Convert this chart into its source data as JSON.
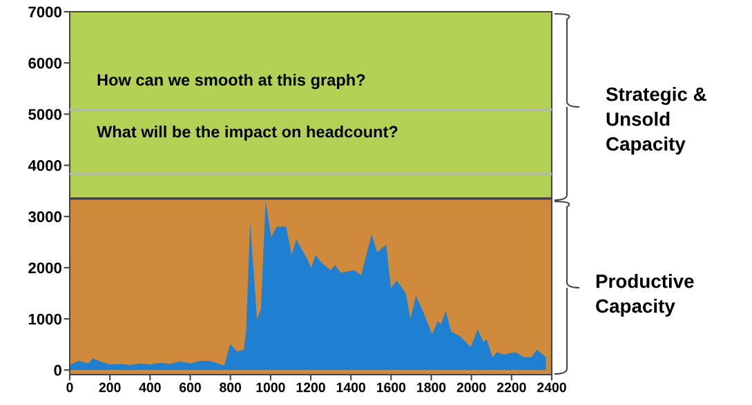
{
  "chart_data": {
    "type": "area",
    "x": [
      0,
      44,
      94,
      115,
      150,
      200,
      250,
      300,
      350,
      400,
      450,
      500,
      550,
      600,
      650,
      696,
      769,
      799,
      833,
      867,
      878,
      898,
      933,
      952,
      975,
      1003,
      1031,
      1077,
      1105,
      1128,
      1185,
      1202,
      1224,
      1253,
      1298,
      1321,
      1349,
      1417,
      1451,
      1503,
      1531,
      1576,
      1599,
      1628,
      1673,
      1696,
      1724,
      1764,
      1804,
      1832,
      1849,
      1872,
      1900,
      1946,
      1997,
      2031,
      2059,
      2076,
      2105,
      2127,
      2161,
      2218,
      2264,
      2298,
      2326,
      2371
    ],
    "series": [
      {
        "color": "#1f7fd0",
        "values": [
          100,
          180,
          130,
          230,
          170,
          110,
          120,
          100,
          130,
          110,
          140,
          120,
          170,
          130,
          180,
          180,
          90,
          510,
          360,
          400,
          760,
          2900,
          980,
          1200,
          3300,
          2600,
          2800,
          2800,
          2250,
          2550,
          2150,
          2000,
          2250,
          2100,
          1950,
          2050,
          1900,
          1950,
          1850,
          2650,
          2300,
          2450,
          1600,
          1750,
          1500,
          1000,
          1450,
          1100,
          700,
          950,
          900,
          1150,
          750,
          650,
          450,
          800,
          550,
          600,
          250,
          350,
          300,
          350,
          250,
          250,
          400,
          250
        ]
      }
    ],
    "xlim": [
      0,
      2400
    ],
    "xticks": [
      0,
      200,
      400,
      600,
      800,
      1000,
      1200,
      1400,
      1600,
      1800,
      2000,
      2200,
      2400
    ],
    "ylim": [
      -90,
      7000
    ],
    "yticks": [
      0,
      1000,
      2000,
      3000,
      4000,
      5000,
      6000,
      7000
    ],
    "bands": [
      {
        "axis": "y",
        "from": -90,
        "to": 3350,
        "color": "#d08a3c"
      },
      {
        "axis": "y",
        "from": 3350,
        "to": 7000,
        "color": "#b3d155"
      }
    ],
    "ref_lines": [
      {
        "axis": "y",
        "value": 5090,
        "color": "#b5b5b5"
      },
      {
        "axis": "y",
        "value": 3830,
        "color": "#b5b5b5"
      },
      {
        "axis": "y",
        "value": 3350,
        "color": "#444444"
      }
    ],
    "annotations": [
      "How can we smooth at this graph?",
      "What will be the impact on headcount?",
      "Strategic &\nUnsold\nCapacity",
      "Productive\nCapacity"
    ],
    "grid": false,
    "legend": false
  }
}
